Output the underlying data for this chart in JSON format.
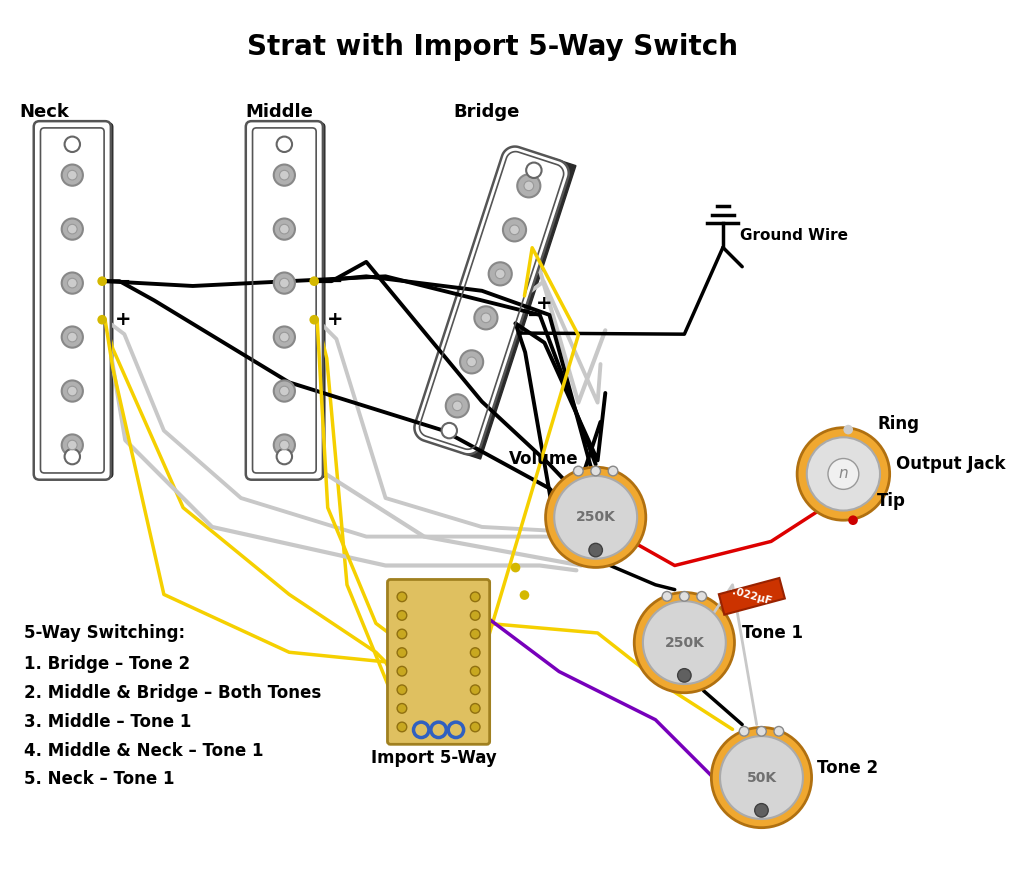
{
  "title": "Strat with Import 5-Way Switch",
  "title_fontsize": 20,
  "title_fontweight": "bold",
  "background_color": "#ffffff",
  "pickup_labels": [
    "Neck",
    "Middle",
    "Bridge"
  ],
  "switching_title": "5-Way Switching:",
  "switching_lines": [
    "1. Bridge – Tone 2",
    "2. Middle & Bridge – Both Tones",
    "3. Middle – Tone 1",
    "4. Middle & Neck – Tone 1",
    "5. Neck – Tone 1"
  ],
  "component_labels": {
    "volume": "Volume",
    "tone1": "Tone 1",
    "tone2": "Tone 2",
    "output_jack": "Output Jack",
    "ring": "Ring",
    "tip": "Tip",
    "ground_wire": "Ground Wire",
    "import_5way": "Import 5-Way"
  },
  "pot_color": "#f0a830",
  "cap_color": "#cc4400",
  "wire_colors": {
    "black": "#000000",
    "white_gray": "#c8c8c8",
    "yellow": "#f5d000",
    "red": "#dd0000",
    "purple": "#7700bb",
    "green": "#006600"
  },
  "pickup_body_color": "#ffffff",
  "pickup_shadow_color": "#303030",
  "pickup_dot_color": "#aaaaaa",
  "switch_body_color": "#e0c860",
  "switch_contact_color": "#c0a000"
}
